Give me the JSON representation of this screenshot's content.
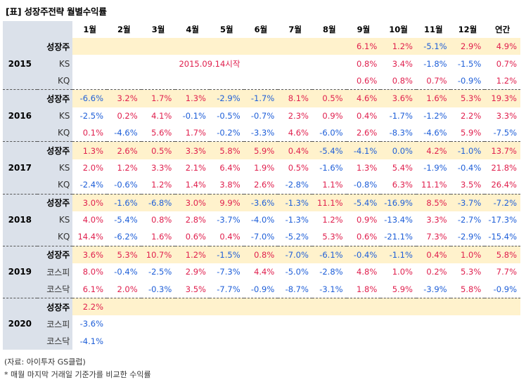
{
  "title": "[표] 성장주전략 월별수익률",
  "columns": [
    "1월",
    "2월",
    "3월",
    "4월",
    "5월",
    "6월",
    "7월",
    "8월",
    "9월",
    "10월",
    "11월",
    "12월",
    "연간"
  ],
  "note_2015": "2015.09.14시작",
  "years": [
    {
      "year": "2015",
      "rows": [
        {
          "label": "성장주",
          "bold": true,
          "hl": true,
          "values": [
            "",
            "",
            "",
            "",
            "",
            "",
            "",
            "",
            "6.1%",
            "1.2%",
            "-5.1%",
            "2.9%",
            "4.9%"
          ]
        },
        {
          "label": "KS",
          "bold": false,
          "hl": false,
          "values": [
            "",
            "",
            "",
            "",
            "",
            "",
            "",
            "",
            "0.8%",
            "3.4%",
            "-1.8%",
            "-1.5%",
            "0.7%"
          ]
        },
        {
          "label": "KQ",
          "bold": false,
          "hl": false,
          "values": [
            "",
            "",
            "",
            "",
            "",
            "",
            "",
            "",
            "0.6%",
            "0.8%",
            "0.7%",
            "-0.9%",
            "1.2%"
          ]
        }
      ]
    },
    {
      "year": "2016",
      "rows": [
        {
          "label": "성장주",
          "bold": true,
          "hl": true,
          "values": [
            "-6.6%",
            "3.2%",
            "1.7%",
            "1.3%",
            "-2.9%",
            "-1.7%",
            "8.1%",
            "0.5%",
            "4.6%",
            "3.6%",
            "1.6%",
            "5.3%",
            "19.3%"
          ]
        },
        {
          "label": "KS",
          "bold": false,
          "hl": false,
          "values": [
            "-2.5%",
            "0.2%",
            "4.1%",
            "-0.1%",
            "-0.5%",
            "-0.7%",
            "2.3%",
            "0.9%",
            "0.4%",
            "-1.7%",
            "-1.2%",
            "2.2%",
            "3.3%"
          ]
        },
        {
          "label": "KQ",
          "bold": false,
          "hl": false,
          "values": [
            "0.1%",
            "-4.6%",
            "5.6%",
            "1.7%",
            "-0.2%",
            "-3.3%",
            "4.6%",
            "-6.0%",
            "2.6%",
            "-8.3%",
            "-4.6%",
            "5.9%",
            "-7.5%"
          ]
        }
      ]
    },
    {
      "year": "2017",
      "rows": [
        {
          "label": "성장주",
          "bold": true,
          "hl": true,
          "values": [
            "1.3%",
            "2.6%",
            "0.5%",
            "3.3%",
            "5.8%",
            "5.9%",
            "0.4%",
            "-5.4%",
            "-4.1%",
            "0.0%",
            "4.2%",
            "-1.0%",
            "13.7%"
          ]
        },
        {
          "label": "KS",
          "bold": false,
          "hl": false,
          "values": [
            "2.0%",
            "1.2%",
            "3.3%",
            "2.1%",
            "6.4%",
            "1.9%",
            "0.5%",
            "-1.6%",
            "1.3%",
            "5.4%",
            "-1.9%",
            "-0.4%",
            "21.8%"
          ]
        },
        {
          "label": "KQ",
          "bold": false,
          "hl": false,
          "values": [
            "-2.4%",
            "-0.6%",
            "1.2%",
            "1.4%",
            "3.8%",
            "2.6%",
            "-2.8%",
            "1.1%",
            "-0.8%",
            "6.3%",
            "11.1%",
            "3.5%",
            "26.4%"
          ]
        }
      ]
    },
    {
      "year": "2018",
      "rows": [
        {
          "label": "성장주",
          "bold": true,
          "hl": true,
          "values": [
            "3.0%",
            "-1.6%",
            "-6.8%",
            "3.0%",
            "9.9%",
            "-3.6%",
            "-1.3%",
            "11.1%",
            "-5.4%",
            "-16.9%",
            "8.5%",
            "-3.7%",
            "-7.2%"
          ]
        },
        {
          "label": "KS",
          "bold": false,
          "hl": false,
          "values": [
            "4.0%",
            "-5.4%",
            "0.8%",
            "2.8%",
            "-3.7%",
            "-4.0%",
            "-1.3%",
            "1.2%",
            "0.9%",
            "-13.4%",
            "3.3%",
            "-2.7%",
            "-17.3%"
          ]
        },
        {
          "label": "KQ",
          "bold": false,
          "hl": false,
          "values": [
            "14.4%",
            "-6.2%",
            "1.6%",
            "0.6%",
            "0.4%",
            "-7.0%",
            "-5.2%",
            "5.3%",
            "0.6%",
            "-21.1%",
            "7.3%",
            "-2.9%",
            "-15.4%"
          ]
        }
      ]
    },
    {
      "year": "2019",
      "rows": [
        {
          "label": "성장주",
          "bold": true,
          "hl": true,
          "values": [
            "3.6%",
            "5.3%",
            "10.7%",
            "1.2%",
            "-1.5%",
            "0.8%",
            "-7.0%",
            "-6.1%",
            "-0.4%",
            "-1.1%",
            "0.4%",
            "1.0%",
            "5.8%"
          ]
        },
        {
          "label": "코스피",
          "bold": false,
          "hl": false,
          "values": [
            "8.0%",
            "-0.4%",
            "-2.5%",
            "2.9%",
            "-7.3%",
            "4.4%",
            "-5.0%",
            "-2.8%",
            "4.8%",
            "1.0%",
            "0.2%",
            "5.3%",
            "7.7%"
          ]
        },
        {
          "label": "코스닥",
          "bold": false,
          "hl": false,
          "values": [
            "6.1%",
            "2.0%",
            "-0.3%",
            "3.5%",
            "-7.7%",
            "-0.9%",
            "-8.7%",
            "-3.1%",
            "1.8%",
            "5.9%",
            "-3.9%",
            "5.8%",
            "-0.9%"
          ]
        }
      ]
    },
    {
      "year": "2020",
      "rows": [
        {
          "label": "성장주",
          "bold": true,
          "hl": true,
          "values": [
            "2.2%",
            "",
            "",
            "",
            "",
            "",
            "",
            "",
            "",
            "",
            "",
            "",
            ""
          ]
        },
        {
          "label": "코스피",
          "bold": false,
          "hl": false,
          "values": [
            "-3.6%",
            "",
            "",
            "",
            "",
            "",
            "",
            "",
            "",
            "",
            "",
            "",
            ""
          ]
        },
        {
          "label": "코스닥",
          "bold": false,
          "hl": false,
          "values": [
            "-4.1%",
            "",
            "",
            "",
            "",
            "",
            "",
            "",
            "",
            "",
            "",
            "",
            ""
          ]
        }
      ]
    }
  ],
  "footer": {
    "source": "(자료: 아이투자 GS클럽)",
    "note": "* 매월 마지막 거래일 기준가를 비교한 수익률"
  }
}
